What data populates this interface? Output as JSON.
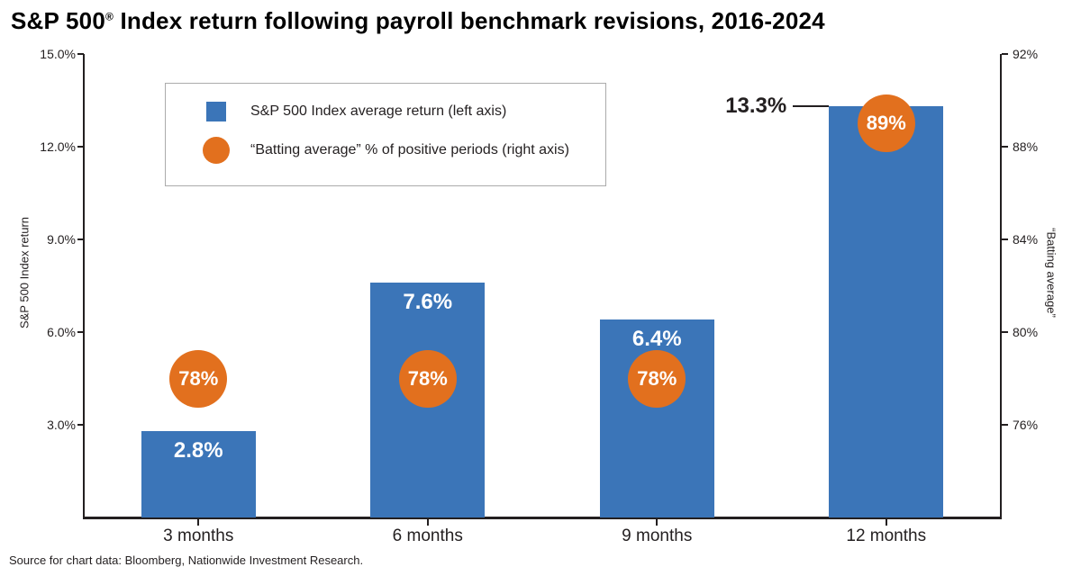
{
  "title": {
    "text_before_reg": "S&P 500",
    "reg_mark": "®",
    "text_after_reg": " Index return following payroll benchmark revisions, 2016-2024"
  },
  "legend": {
    "items": [
      {
        "marker": "square",
        "label": "S&P 500 Index average return (left axis)"
      },
      {
        "marker": "circle",
        "label": "“Batting average” % of positive periods (right axis)"
      }
    ]
  },
  "axes": {
    "left": {
      "title": "S&P 500 Index return",
      "ticks": [
        {
          "value": 15,
          "label": "15.0%"
        },
        {
          "value": 12,
          "label": "12.0%"
        },
        {
          "value": 9,
          "label": "9.0%"
        },
        {
          "value": 6,
          "label": "6.0%"
        },
        {
          "value": 3,
          "label": "3.0%"
        }
      ]
    },
    "right": {
      "title": "“Batting average”",
      "ticks": [
        {
          "value": 92,
          "label": "92%"
        },
        {
          "value": 88,
          "label": "88%"
        },
        {
          "value": 84,
          "label": "84%"
        },
        {
          "value": 80,
          "label": "80%"
        },
        {
          "value": 76,
          "label": "76%"
        }
      ]
    }
  },
  "footer": {
    "source": "Source for chart data: Bloomberg, Nationwide Investment Research."
  },
  "colors": {
    "bar_blue": "#3B75B8",
    "circle_orange": "#E2701E",
    "axis_black": "#231F20"
  },
  "chart_data": {
    "type": "bar",
    "title": "S&P 500® Index return following payroll benchmark revisions, 2016-2024",
    "categories": [
      "3 months",
      "6 months",
      "9 months",
      "12 months"
    ],
    "series": [
      {
        "name": "S&P 500 Index average return (left axis)",
        "type": "bar",
        "axis": "left",
        "color": "#3B75B8",
        "values": [
          2.8,
          7.6,
          6.4,
          13.3
        ],
        "labels": [
          "2.8%",
          "7.6%",
          "6.4%",
          "13.3%"
        ],
        "label_placement": [
          "inside",
          "inside",
          "inside",
          "callout-left"
        ]
      },
      {
        "name": "“Batting average” % of positive periods (right axis)",
        "type": "point",
        "axis": "right",
        "color": "#E2701E",
        "values": [
          78,
          78,
          78,
          89
        ],
        "labels": [
          "78%",
          "78%",
          "78%",
          "89%"
        ]
      }
    ],
    "xlabel": "",
    "ylabel_left": "S&P 500 Index return",
    "ylabel_right": "“Batting average”",
    "left_ylim": [
      0,
      15
    ],
    "right_ylim": [
      72,
      92
    ],
    "grid": false,
    "legend_position": "upper-left-inside",
    "source_note": "Source for chart data: Bloomberg, Nationwide Investment Research."
  }
}
